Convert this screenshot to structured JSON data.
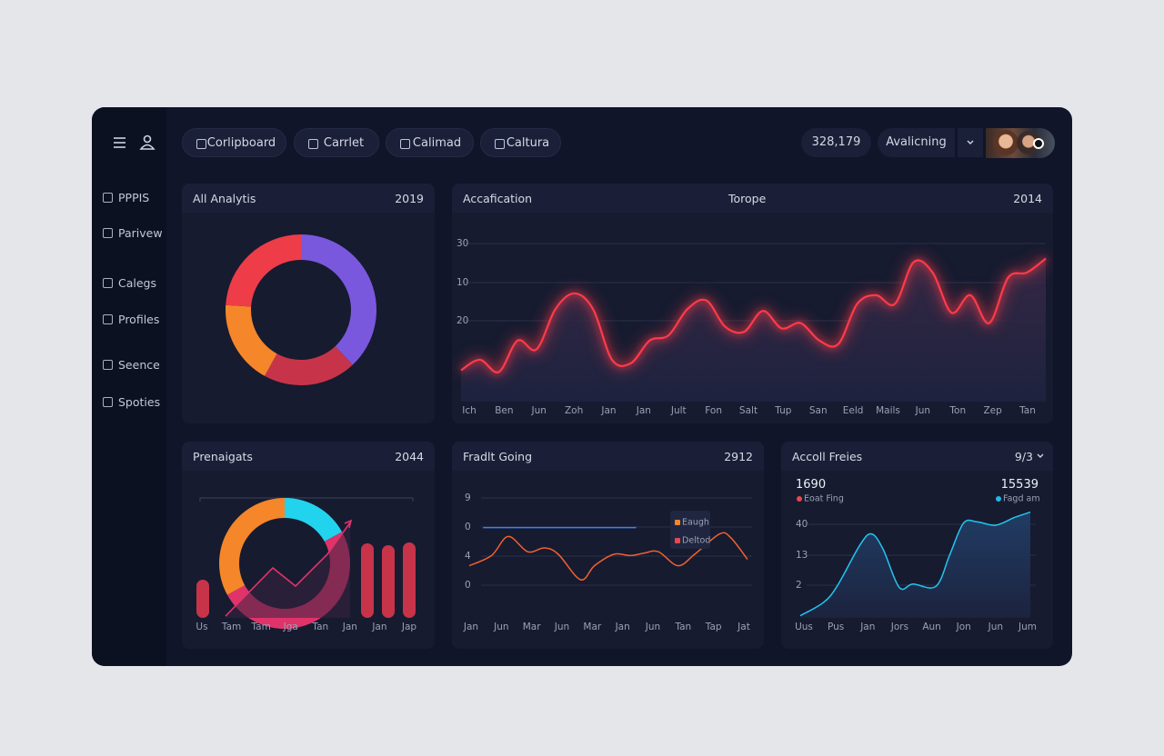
{
  "header": {
    "tabs": [
      "Corlipboard",
      "Carrlet",
      "Calimad",
      "Caltura"
    ],
    "stat": "328,179",
    "menu": "Avalicning"
  },
  "sidebar": [
    "PPPIS",
    "Parivew",
    "Calegs",
    "Profiles",
    "Seence",
    "Spoties"
  ],
  "panels": [
    {
      "title": "All Analytis",
      "badge": "2019",
      "chart": {
        "type": "donut",
        "values": [
          38,
          20,
          18,
          24
        ],
        "colors": [
          "#7a58dd",
          "#c7344a",
          "#f5862a",
          "#ee3d48"
        ]
      }
    },
    {
      "title": "Accafication",
      "subtitle": "Torope",
      "badge": "2014",
      "chart": {
        "type": "line",
        "y_labels": [
          "30",
          "10",
          "20"
        ],
        "x_labels": [
          "Ich",
          "Ben",
          "Jun",
          "Zoh",
          "Jan",
          "Jan",
          "Jult",
          "Fon",
          "Salt",
          "Tup",
          "San",
          "Eeld",
          "Mails",
          "Jun",
          "Ton",
          "Zep",
          "Tan"
        ],
        "ylim": [
          0,
          100
        ],
        "series": [
          {
            "color": "#ff3b4a",
            "values": [
              18,
              24,
              17,
              35,
              30,
              53,
              62,
              53,
              24,
              22,
              35,
              38,
              53,
              58,
              43,
              40,
              52,
              42,
              45,
              35,
              33,
              56,
              61,
              56,
              80,
              74,
              51,
              61,
              45,
              71,
              74,
              82
            ]
          }
        ]
      }
    },
    {
      "title": "Prenaigats",
      "badge": "2044",
      "chart": {
        "type": "combo",
        "x_labels": [
          "Us",
          "Tam",
          "Tam",
          "Jga",
          "Tan",
          "Jan",
          "Jan",
          "Jap"
        ],
        "ylim": [
          0,
          110
        ],
        "bars": {
          "color": "#c7344a",
          "values": [
            42,
            82,
            80,
            83
          ]
        },
        "donut": {
          "values": [
            17,
            50,
            33
          ],
          "colors": [
            "#22d3ee",
            "#e0336a",
            "#f5862a"
          ]
        },
        "line": {
          "color": "#e0336a",
          "values": [
            2,
            55,
            35,
            70,
            105
          ]
        }
      }
    },
    {
      "title": "Fradlt Going",
      "badge": "2912",
      "chart": {
        "type": "line",
        "y_labels": [
          "9",
          "0",
          "4",
          "0"
        ],
        "x_labels": [
          "Jan",
          "Jun",
          "Mar",
          "Jun",
          "Mar",
          "Jan",
          "Jun",
          "Tan",
          "Tap",
          "Jat"
        ],
        "xlim": [
          0,
          100
        ],
        "ylim": [
          0,
          100
        ],
        "legend": [
          {
            "name": "Eaugh",
            "color": "#f5862a"
          },
          {
            "name": "Deltod",
            "color": "#e5484d"
          }
        ],
        "series": [
          {
            "color": "#f2602f",
            "x": [
              0,
              8,
              14,
              21,
              27,
              32,
              40,
              45,
              52,
              58,
              63,
              68,
              75,
              81,
              90,
              94,
              100
            ],
            "values": [
              41,
              49,
              64,
              52,
              55,
              50,
              30,
              41,
              50,
              49,
              51,
              52,
              41,
              50,
              66,
              63,
              46
            ]
          },
          {
            "color": "#3b82f6",
            "x": [
              5,
              60
            ],
            "values": [
              71,
              71
            ]
          }
        ]
      }
    },
    {
      "title": "Accoll Freies",
      "badge": "9/3",
      "stats": [
        "1690",
        "15539"
      ],
      "chart": {
        "type": "line",
        "y_labels": [
          "40",
          "13",
          "2"
        ],
        "x_labels": [
          "Uus",
          "Pus",
          "Jan",
          "Jors",
          "Aun",
          "Jon",
          "Jun",
          "Jum"
        ],
        "xlim": [
          0,
          100
        ],
        "ylim": [
          0,
          100
        ],
        "legend": [
          {
            "name": "Eoat Fing",
            "color": "#e5484d"
          },
          {
            "name": "Fagd am",
            "color": "#22b8e6"
          }
        ],
        "series": [
          {
            "color": "#22c5f0",
            "x": [
              0,
              10,
              16,
              26,
              31,
              36,
              43,
              49,
              59,
              65,
              71,
              77,
              85,
              93,
              100
            ],
            "values": [
              2,
              14,
              29,
              67,
              77,
              63,
              28,
              31,
              29,
              58,
              87,
              88,
              85,
              92,
              97
            ]
          }
        ]
      }
    }
  ]
}
